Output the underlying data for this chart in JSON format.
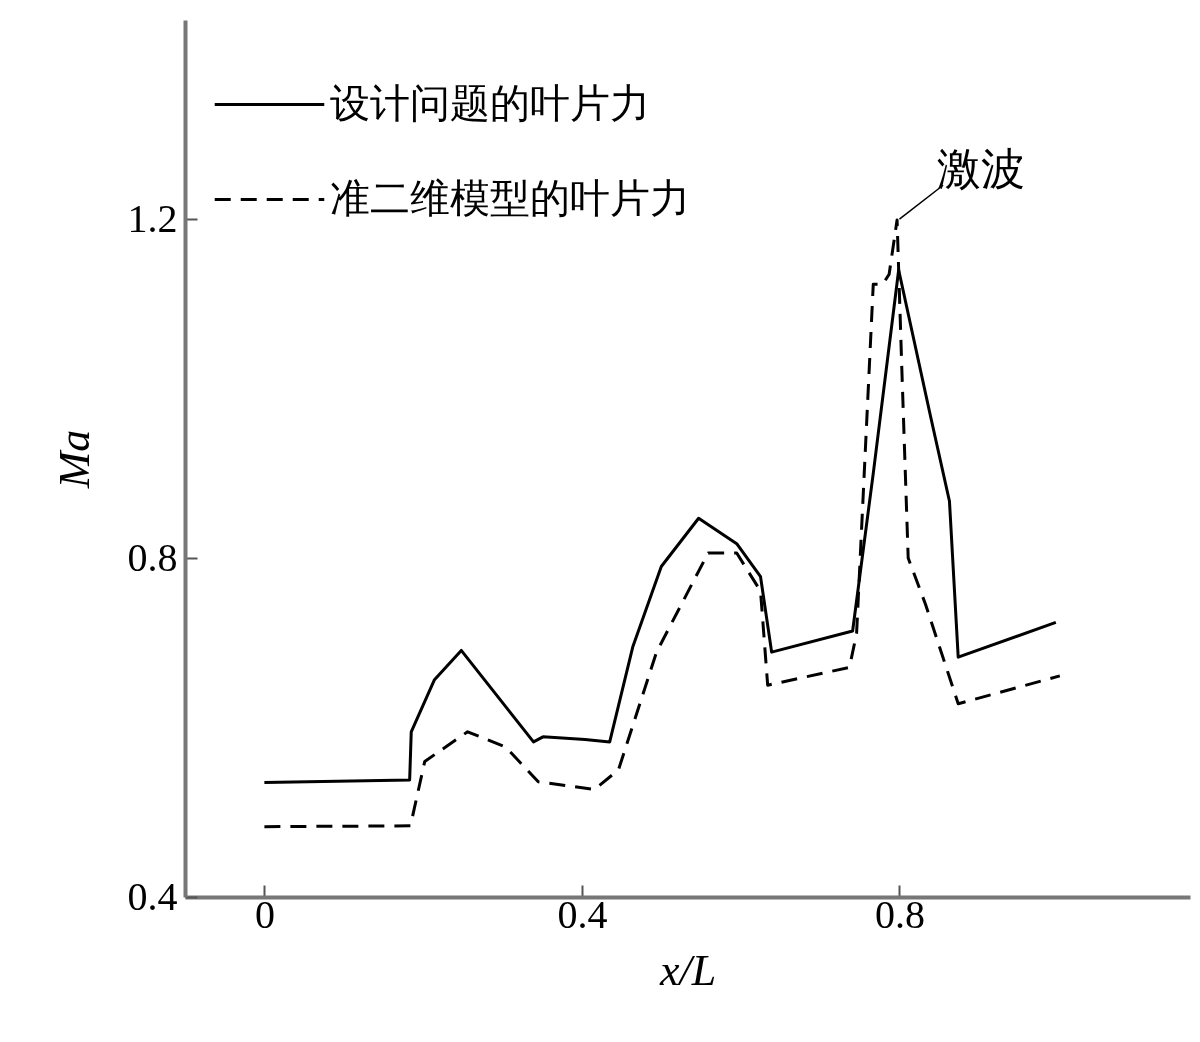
{
  "chart_data": {
    "type": "line",
    "xlabel": "x/L",
    "ylabel": "Ma",
    "xlim": [
      -0.1,
      1.166
    ],
    "ylim": [
      0.4,
      1.435
    ],
    "xticks": [
      0,
      0.4,
      0.8
    ],
    "yticks": [
      0.4,
      0.8,
      1.2
    ],
    "grid": false,
    "legend": "top left",
    "annotations": [
      {
        "text": "激波",
        "x": 0.8,
        "y": 1.2
      }
    ],
    "series": [
      {
        "name": "设计问题的叶片力",
        "color": "#000000",
        "line_style": "solid",
        "x": [
          0,
          0.183,
          0.185,
          0.214,
          0.248,
          0.339,
          0.351,
          0.404,
          0.435,
          0.464,
          0.5,
          0.547,
          0.595,
          0.625,
          0.639,
          0.741,
          0.767,
          0.799,
          0.839,
          0.863,
          0.874,
          0.997
        ],
        "values": [
          0.535,
          0.538,
          0.595,
          0.656,
          0.691,
          0.583,
          0.589,
          0.586,
          0.583,
          0.695,
          0.79,
          0.847,
          0.817,
          0.778,
          0.689,
          0.714,
          0.9,
          1.14,
          0.968,
          0.867,
          0.683,
          0.724
        ]
      },
      {
        "name": "准二维模型的叶片力",
        "color": "#000000",
        "line_style": "dashed",
        "x": [
          0,
          0.184,
          0.202,
          0.256,
          0.304,
          0.345,
          0.416,
          0.446,
          0.494,
          0.559,
          0.595,
          0.625,
          0.634,
          0.737,
          0.746,
          0.767,
          0.779,
          0.787,
          0.797,
          0.803,
          0.811,
          0.833,
          0.874,
          1.002
        ],
        "values": [
          0.483,
          0.484,
          0.56,
          0.595,
          0.577,
          0.536,
          0.527,
          0.55,
          0.689,
          0.806,
          0.806,
          0.761,
          0.65,
          0.671,
          0.711,
          1.123,
          1.123,
          1.135,
          1.199,
          1.023,
          0.8,
          0.745,
          0.628,
          0.661
        ]
      }
    ]
  }
}
